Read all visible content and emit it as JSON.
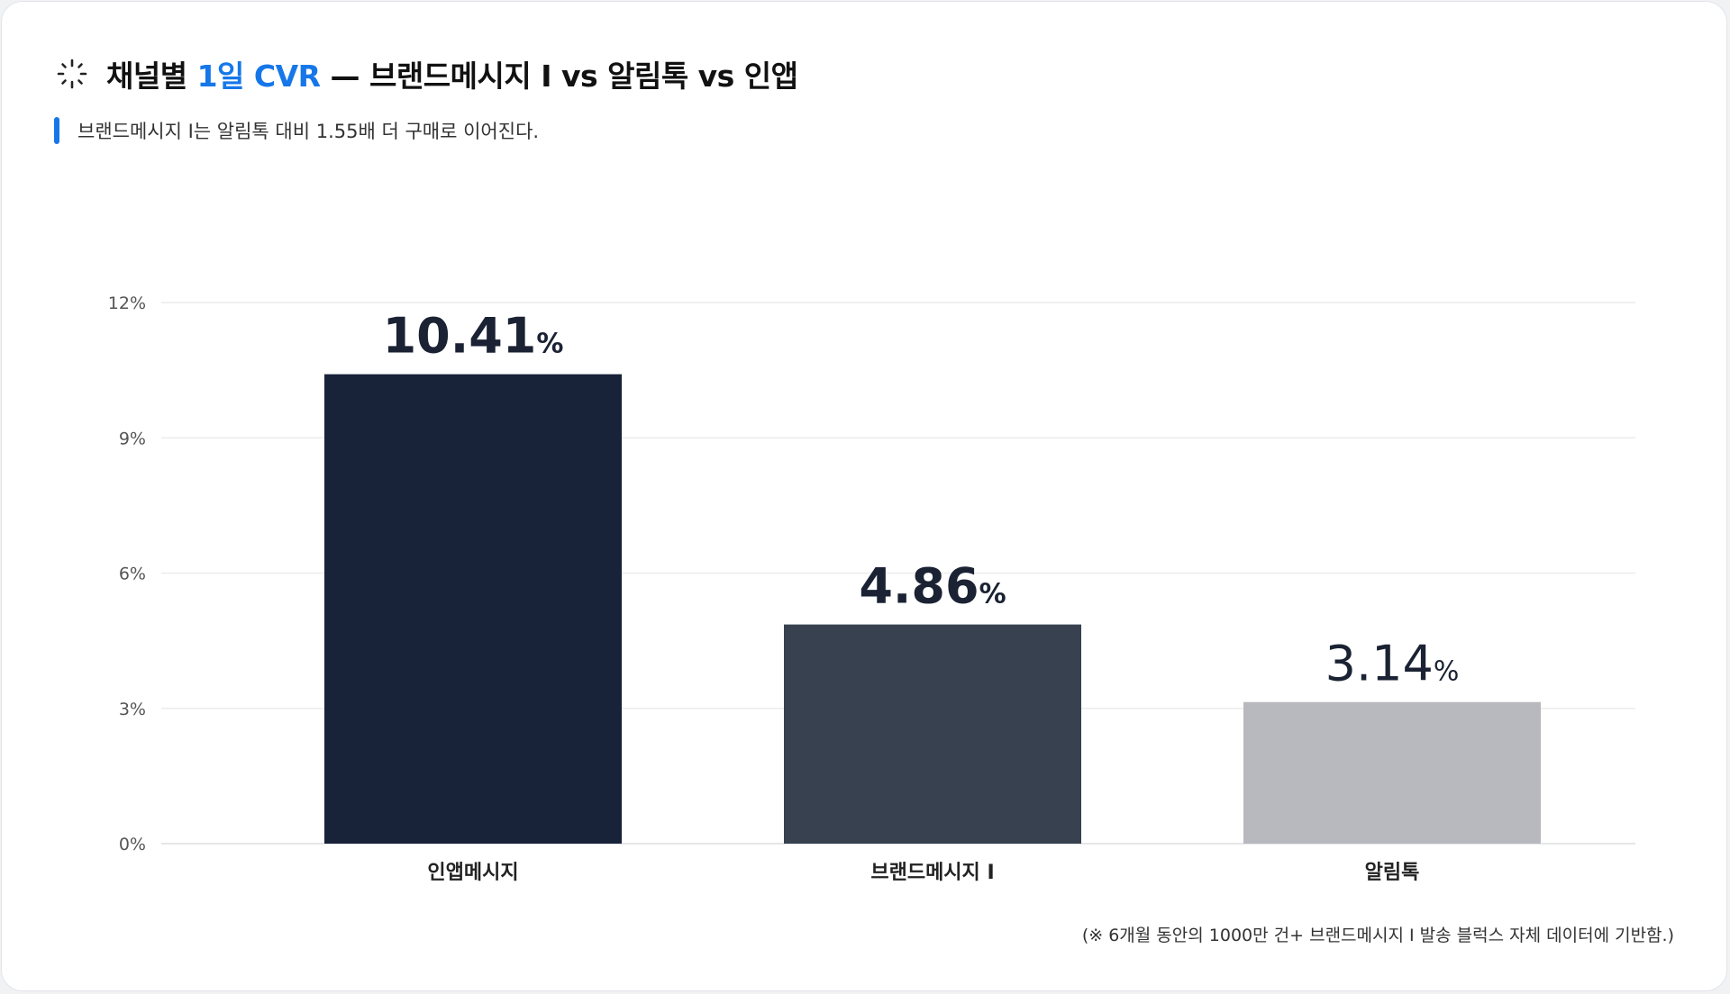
{
  "header": {
    "title_prefix": "채널별 ",
    "title_accent": "1일 CVR",
    "title_suffix": " — 브랜드메시지 I vs 알림톡 vs 인앱",
    "icon": "sparkle-icon",
    "accent_color": "#1677e8"
  },
  "subtitle": "브랜드메시지 I는 알림톡 대비 1.55배 더 구매로 이어진다.",
  "footnote": "(※ 6개월 동안의 1000만 건+ 브랜드메시지 I 발송 블럭스 자체 데이터에 기반함.)",
  "chart_data": {
    "type": "bar",
    "categories": [
      "인앱메시지",
      "브랜드메시지 I",
      "알림톡"
    ],
    "values": [
      10.41,
      4.86,
      3.14
    ],
    "value_labels": [
      "10.41",
      "4.86",
      "3.14"
    ],
    "value_suffix": "%",
    "colors": [
      "#18233a",
      "#37414f",
      "#b8b8bf"
    ],
    "label_colors": [
      "#18233a",
      "#18233a",
      "#111111"
    ],
    "label_weights": [
      "bold",
      "bold",
      "normal"
    ],
    "yticks": [
      "0%",
      "3%",
      "6%",
      "9%",
      "12%"
    ],
    "ytick_values": [
      0,
      3,
      6,
      9,
      12
    ],
    "ylim": [
      0,
      12
    ],
    "grid": true,
    "legend": "none",
    "title": "",
    "xlabel": "",
    "ylabel": ""
  }
}
